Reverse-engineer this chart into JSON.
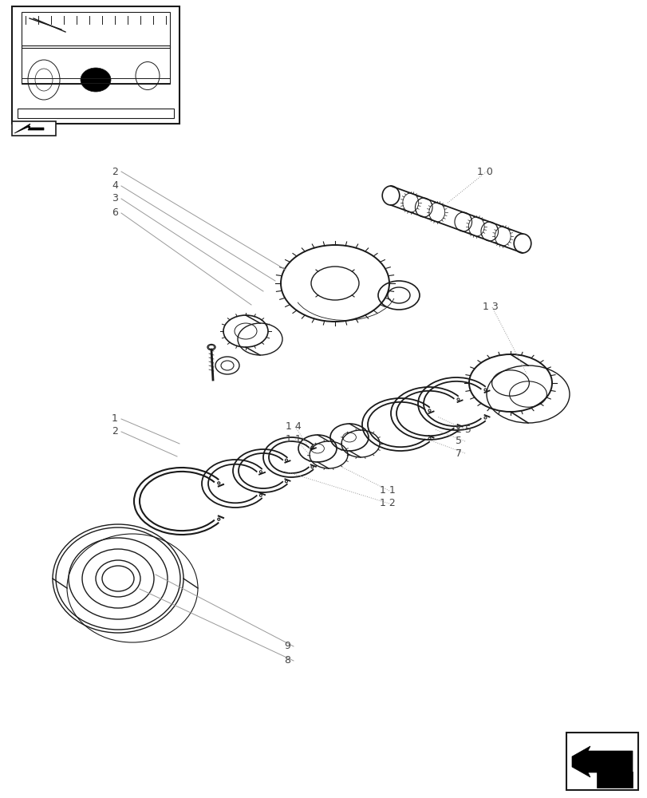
{
  "fig_width": 8.12,
  "fig_height": 10.0,
  "dpi": 100,
  "bg_color": "#ffffff",
  "lc": "#1a1a1a",
  "ldc": "#999999",
  "thinlc": "#555555"
}
